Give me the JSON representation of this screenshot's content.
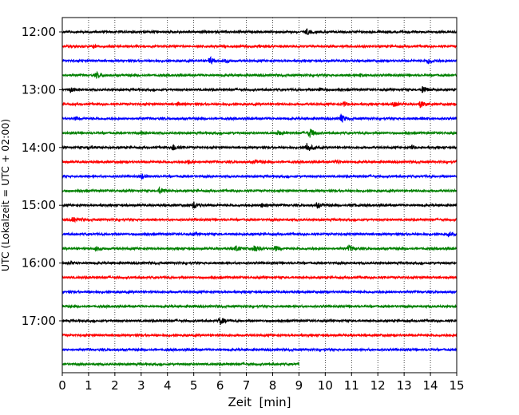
{
  "chart_data": {
    "type": "line",
    "title": "",
    "xlabel": "Zeit  [min]",
    "ylabel": "UTC (Lokalzeit = UTC + 02:00)",
    "xlim": [
      0,
      15
    ],
    "x_ticks": [
      "0",
      "1",
      "2",
      "3",
      "4",
      "5",
      "6",
      "7",
      "8",
      "9",
      "10",
      "11",
      "12",
      "13",
      "14",
      "15"
    ],
    "y_ticks": [
      "12:00",
      "13:00",
      "14:00",
      "15:00",
      "16:00",
      "17:00"
    ],
    "row_interval_min": 15,
    "rows": 24,
    "grid": "vertical dotted",
    "colors": [
      "#000000",
      "#ff0000",
      "#0000ff",
      "#008000"
    ],
    "traces": [
      {
        "time": "12:00",
        "color": "#000000",
        "events": [
          {
            "t": 9.3,
            "amp": 0.35
          }
        ]
      },
      {
        "time": "12:15",
        "color": "#ff0000",
        "events": [
          {
            "t": 1.2,
            "amp": 0.15
          },
          {
            "t": 7.5,
            "amp": 0.12
          }
        ]
      },
      {
        "time": "12:30",
        "color": "#0000ff",
        "events": [
          {
            "t": 5.6,
            "amp": 0.45
          },
          {
            "t": 6.2,
            "amp": 0.2
          },
          {
            "t": 13.9,
            "amp": 0.4
          }
        ]
      },
      {
        "time": "12:45",
        "color": "#008000",
        "events": [
          {
            "t": 1.3,
            "amp": 0.35
          },
          {
            "t": 11.3,
            "amp": 0.15
          }
        ]
      },
      {
        "time": "13:00",
        "color": "#000000",
        "events": [
          {
            "t": 0.3,
            "amp": 0.3
          },
          {
            "t": 9.8,
            "amp": 0.25
          },
          {
            "t": 13.7,
            "amp": 0.5
          }
        ]
      },
      {
        "time": "13:15",
        "color": "#ff0000",
        "events": [
          {
            "t": 4.4,
            "amp": 0.2
          },
          {
            "t": 10.7,
            "amp": 0.25
          },
          {
            "t": 12.6,
            "amp": 0.3
          },
          {
            "t": 13.6,
            "amp": 0.45
          }
        ]
      },
      {
        "time": "13:30",
        "color": "#0000ff",
        "events": [
          {
            "t": 0.5,
            "amp": 0.15
          },
          {
            "t": 10.6,
            "amp": 0.5
          },
          {
            "t": 13.7,
            "amp": 0.15
          }
        ]
      },
      {
        "time": "13:45",
        "color": "#008000",
        "events": [
          {
            "t": 3.0,
            "amp": 0.15
          },
          {
            "t": 8.2,
            "amp": 0.25
          },
          {
            "t": 9.4,
            "amp": 0.6
          }
        ]
      },
      {
        "time": "14:00",
        "color": "#000000",
        "events": [
          {
            "t": 1.0,
            "amp": 0.2
          },
          {
            "t": 4.2,
            "amp": 0.4
          },
          {
            "t": 9.3,
            "amp": 0.6
          },
          {
            "t": 13.3,
            "amp": 0.2
          }
        ]
      },
      {
        "time": "14:15",
        "color": "#ff0000",
        "events": [
          {
            "t": 4.8,
            "amp": 0.25
          },
          {
            "t": 7.3,
            "amp": 0.2
          },
          {
            "t": 10.4,
            "amp": 0.2
          }
        ]
      },
      {
        "time": "14:30",
        "color": "#0000ff",
        "events": [
          {
            "t": 3.0,
            "amp": 0.3
          }
        ]
      },
      {
        "time": "14:45",
        "color": "#008000",
        "events": [
          {
            "t": 3.7,
            "amp": 0.35
          }
        ]
      },
      {
        "time": "15:00",
        "color": "#000000",
        "events": [
          {
            "t": 5.0,
            "amp": 0.45
          },
          {
            "t": 7.6,
            "amp": 0.35
          },
          {
            "t": 9.7,
            "amp": 0.3
          },
          {
            "t": 11.0,
            "amp": 0.15
          }
        ]
      },
      {
        "time": "15:15",
        "color": "#ff0000",
        "events": [
          {
            "t": 0.4,
            "amp": 0.3
          }
        ]
      },
      {
        "time": "15:30",
        "color": "#0000ff",
        "events": [
          {
            "t": 5.0,
            "amp": 0.1
          },
          {
            "t": 14.7,
            "amp": 0.25
          }
        ]
      },
      {
        "time": "15:45",
        "color": "#008000",
        "events": [
          {
            "t": 1.3,
            "amp": 0.25
          },
          {
            "t": 6.6,
            "amp": 0.35
          },
          {
            "t": 7.3,
            "amp": 0.45
          },
          {
            "t": 8.1,
            "amp": 0.3
          },
          {
            "t": 10.9,
            "amp": 0.35
          }
        ]
      },
      {
        "time": "16:00",
        "color": "#000000",
        "events": [
          {
            "t": 0.3,
            "amp": 0.15
          }
        ]
      },
      {
        "time": "16:15",
        "color": "#ff0000",
        "events": []
      },
      {
        "time": "16:30",
        "color": "#0000ff",
        "events": []
      },
      {
        "time": "16:45",
        "color": "#008000",
        "events": []
      },
      {
        "time": "17:00",
        "color": "#000000",
        "events": [
          {
            "t": 6.0,
            "amp": 0.45
          }
        ]
      },
      {
        "time": "17:15",
        "color": "#ff0000",
        "events": []
      },
      {
        "time": "17:30",
        "color": "#0000ff",
        "events": []
      },
      {
        "time": "17:45",
        "color": "#008000",
        "end": 9.0,
        "events": []
      }
    ]
  }
}
